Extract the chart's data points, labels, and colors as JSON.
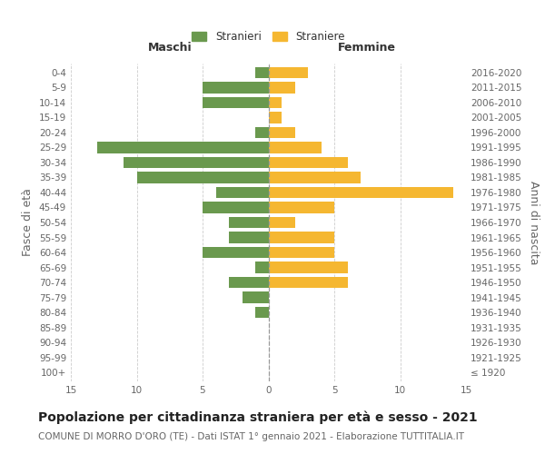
{
  "age_groups": [
    "100+",
    "95-99",
    "90-94",
    "85-89",
    "80-84",
    "75-79",
    "70-74",
    "65-69",
    "60-64",
    "55-59",
    "50-54",
    "45-49",
    "40-44",
    "35-39",
    "30-34",
    "25-29",
    "20-24",
    "15-19",
    "10-14",
    "5-9",
    "0-4"
  ],
  "birth_years": [
    "≤ 1920",
    "1921-1925",
    "1926-1930",
    "1931-1935",
    "1936-1940",
    "1941-1945",
    "1946-1950",
    "1951-1955",
    "1956-1960",
    "1961-1965",
    "1966-1970",
    "1971-1975",
    "1976-1980",
    "1981-1985",
    "1986-1990",
    "1991-1995",
    "1996-2000",
    "2001-2005",
    "2006-2010",
    "2011-2015",
    "2016-2020"
  ],
  "maschi": [
    0,
    0,
    0,
    0,
    1,
    2,
    3,
    1,
    5,
    3,
    3,
    5,
    4,
    10,
    11,
    13,
    1,
    0,
    5,
    5,
    1
  ],
  "femmine": [
    0,
    0,
    0,
    0,
    0,
    0,
    6,
    6,
    5,
    5,
    2,
    5,
    14,
    7,
    6,
    4,
    2,
    1,
    1,
    2,
    3
  ],
  "maschi_color": "#6a994e",
  "femmine_color": "#f5b731",
  "title": "Popolazione per cittadinanza straniera per età e sesso - 2021",
  "subtitle": "COMUNE DI MORRO D'ORO (TE) - Dati ISTAT 1° gennaio 2021 - Elaborazione TUTTITALIA.IT",
  "xlabel_left": "Maschi",
  "xlabel_right": "Femmine",
  "ylabel_left": "Fasce di età",
  "ylabel_right": "Anni di nascita",
  "legend_stranieri": "Stranieri",
  "legend_straniere": "Straniere",
  "xlim": 15,
  "background_color": "#ffffff",
  "grid_color": "#cccccc",
  "bar_height": 0.75,
  "title_fontsize": 10,
  "subtitle_fontsize": 7.5,
  "axis_label_fontsize": 9,
  "tick_fontsize": 7.5
}
